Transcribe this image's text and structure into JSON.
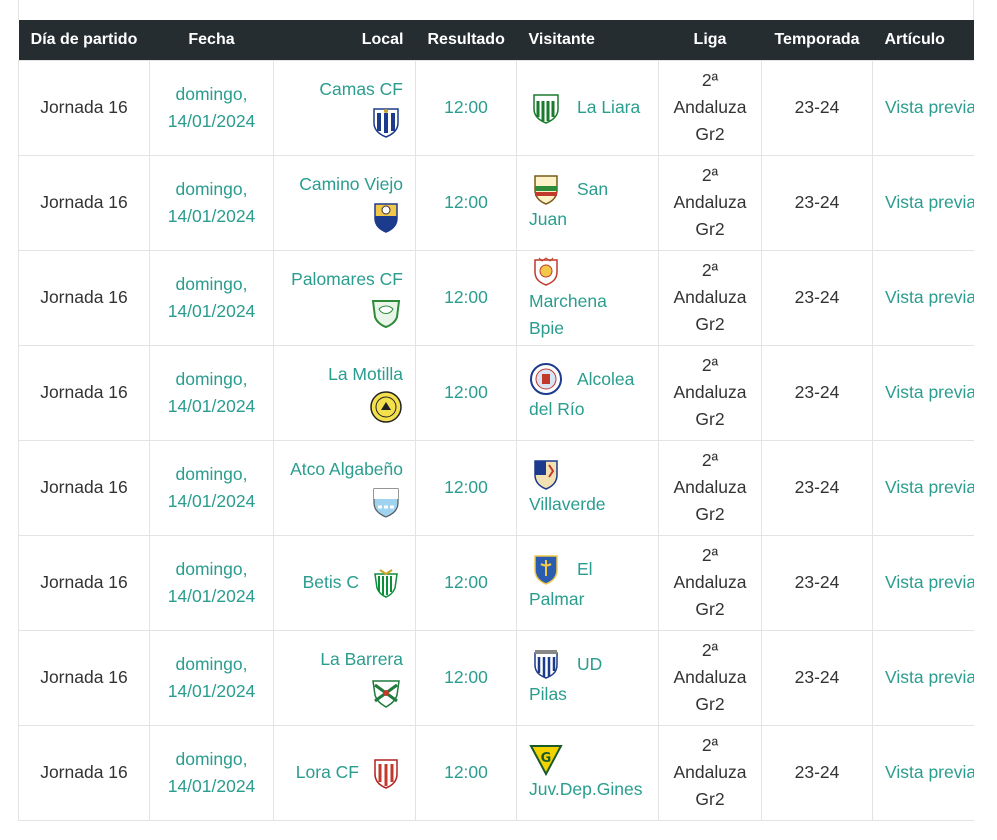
{
  "table": {
    "headers": {
      "jornada": "Día de partido",
      "fecha": "Fecha",
      "local": "Local",
      "resultado": "Resultado",
      "visitante": "Visitante",
      "liga": "Liga",
      "temporada": "Temporada",
      "articulo": "Artículo"
    },
    "rows": [
      {
        "jornada": "Jornada 16",
        "fecha_day": "domingo,",
        "fecha_date": "14/01/2024",
        "local": "Camas CF",
        "local_crest": "camas-crest-icon",
        "resultado": "12:00",
        "visitante_first": "La Liara",
        "visitante_rest": "",
        "visitante_crest": "la-liara-crest-icon",
        "liga_1": "2ª",
        "liga_2": "Andaluza",
        "liga_3": "Gr2",
        "temporada": "23-24",
        "articulo": "Vista previa"
      },
      {
        "jornada": "Jornada 16",
        "fecha_day": "domingo,",
        "fecha_date": "14/01/2024",
        "local": "Camino Viejo",
        "local_crest": "camino-viejo-crest-icon",
        "resultado": "12:00",
        "visitante_first": "San",
        "visitante_rest": "Juan",
        "visitante_crest": "san-juan-crest-icon",
        "liga_1": "2ª",
        "liga_2": "Andaluza",
        "liga_3": "Gr2",
        "temporada": "23-24",
        "articulo": "Vista previa"
      },
      {
        "jornada": "Jornada 16",
        "fecha_day": "domingo,",
        "fecha_date": "14/01/2024",
        "local": "Palomares CF",
        "local_crest": "palomares-crest-icon",
        "resultado": "12:00",
        "visitante_first": "",
        "visitante_rest": "Marchena Bpie",
        "visitante_crest": "marchena-crest-icon",
        "liga_1": "2ª",
        "liga_2": "Andaluza",
        "liga_3": "Gr2",
        "temporada": "23-24",
        "articulo": "Vista previa"
      },
      {
        "jornada": "Jornada 16",
        "fecha_day": "domingo,",
        "fecha_date": "14/01/2024",
        "local": "La Motilla",
        "local_crest": "la-motilla-crest-icon",
        "resultado": "12:00",
        "visitante_first": "Alcolea",
        "visitante_rest": "del Río",
        "visitante_crest": "alcolea-crest-icon",
        "liga_1": "2ª",
        "liga_2": "Andaluza",
        "liga_3": "Gr2",
        "temporada": "23-24",
        "articulo": "Vista previa"
      },
      {
        "jornada": "Jornada 16",
        "fecha_day": "domingo,",
        "fecha_date": "14/01/2024",
        "local": "Atco Algabeño",
        "local_crest": "algabeno-crest-icon",
        "resultado": "12:00",
        "visitante_first": "",
        "visitante_rest": "Villaverde",
        "visitante_crest": "villaverde-crest-icon",
        "liga_1": "2ª",
        "liga_2": "Andaluza",
        "liga_3": "Gr2",
        "temporada": "23-24",
        "articulo": "Vista previa"
      },
      {
        "jornada": "Jornada 16",
        "fecha_day": "domingo,",
        "fecha_date": "14/01/2024",
        "local": "Betis C",
        "local_crest": "betis-crest-icon",
        "resultado": "12:00",
        "visitante_first": "El",
        "visitante_rest": "Palmar",
        "visitante_crest": "el-palmar-crest-icon",
        "liga_1": "2ª",
        "liga_2": "Andaluza",
        "liga_3": "Gr2",
        "temporada": "23-24",
        "articulo": "Vista previa"
      },
      {
        "jornada": "Jornada 16",
        "fecha_day": "domingo,",
        "fecha_date": "14/01/2024",
        "local": "La Barrera",
        "local_crest": "la-barrera-crest-icon",
        "resultado": "12:00",
        "visitante_first": "UD",
        "visitante_rest": "Pilas",
        "visitante_crest": "ud-pilas-crest-icon",
        "liga_1": "2ª",
        "liga_2": "Andaluza",
        "liga_3": "Gr2",
        "temporada": "23-24",
        "articulo": "Vista previa"
      },
      {
        "jornada": "Jornada 16",
        "fecha_day": "domingo,",
        "fecha_date": "14/01/2024",
        "local": "Lora CF",
        "local_crest": "lora-crest-icon",
        "resultado": "12:00",
        "visitante_first": "",
        "visitante_rest": "Juv.Dep.Gines",
        "visitante_crest": "gines-crest-icon",
        "liga_1": "2ª",
        "liga_2": "Andaluza",
        "liga_3": "Gr2",
        "temporada": "23-24",
        "articulo": "Vista previa"
      }
    ]
  },
  "colors": {
    "header_bg": "#252d31",
    "link": "#2a9d8f",
    "border": "#e3e3e3",
    "text": "#333333"
  }
}
